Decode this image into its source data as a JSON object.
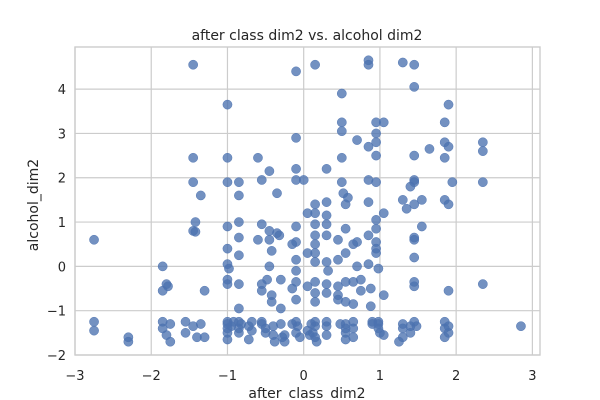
{
  "chart_data": {
    "type": "scatter",
    "title": "after class dim2 vs. alcohol dim2",
    "xlabel": "after_class_dim2",
    "ylabel": "alcohol_dim2",
    "xlim": [
      -3,
      3.1
    ],
    "ylim": [
      -2,
      4.95
    ],
    "xticks": [
      -3,
      -2,
      -1,
      0,
      1,
      2,
      3
    ],
    "yticks": [
      -2,
      -1,
      0,
      1,
      2,
      3,
      4
    ],
    "grid": true,
    "color": "#4c72b0",
    "points": [
      [
        -2.75,
        0.6
      ],
      [
        -2.75,
        -1.25
      ],
      [
        -2.75,
        -1.45
      ],
      [
        -2.3,
        -1.6
      ],
      [
        -2.3,
        -1.7
      ],
      [
        -1.85,
        0.0
      ],
      [
        -1.85,
        -0.55
      ],
      [
        -1.8,
        -0.4
      ],
      [
        -1.78,
        -0.45
      ],
      [
        -1.85,
        -1.25
      ],
      [
        -1.85,
        -1.4
      ],
      [
        -1.8,
        -1.55
      ],
      [
        -1.75,
        -1.7
      ],
      [
        -1.75,
        -1.3
      ],
      [
        -1.55,
        -1.25
      ],
      [
        -1.55,
        -1.5
      ],
      [
        -1.45,
        -1.35
      ],
      [
        -1.4,
        -1.6
      ],
      [
        -1.35,
        -1.3
      ],
      [
        -1.3,
        -1.6
      ],
      [
        -1.45,
        4.55
      ],
      [
        -1.45,
        2.45
      ],
      [
        -1.45,
        1.9
      ],
      [
        -1.42,
        1.0
      ],
      [
        -1.45,
        0.8
      ],
      [
        -1.42,
        0.78
      ],
      [
        -1.35,
        1.6
      ],
      [
        -1.3,
        -0.55
      ],
      [
        -1.0,
        3.65
      ],
      [
        -1.0,
        2.45
      ],
      [
        -1.0,
        1.9
      ],
      [
        -1.0,
        0.9
      ],
      [
        -1.0,
        0.4
      ],
      [
        -1.0,
        0.05
      ],
      [
        -0.98,
        -0.05
      ],
      [
        -1.0,
        -0.3
      ],
      [
        -1.0,
        -0.4
      ],
      [
        -1.0,
        -1.25
      ],
      [
        -1.0,
        -1.3
      ],
      [
        -1.0,
        -1.4
      ],
      [
        -1.0,
        -1.5
      ],
      [
        -1.0,
        -1.65
      ],
      [
        -0.95,
        -1.35
      ],
      [
        -0.92,
        -1.25
      ],
      [
        -0.85,
        1.9
      ],
      [
        -0.85,
        1.6
      ],
      [
        -0.85,
        1.0
      ],
      [
        -0.85,
        0.65
      ],
      [
        -0.85,
        0.25
      ],
      [
        -0.85,
        -0.4
      ],
      [
        -0.85,
        -0.95
      ],
      [
        -0.85,
        -1.25
      ],
      [
        -0.85,
        -1.4
      ],
      [
        -0.85,
        -1.5
      ],
      [
        -0.82,
        -1.3
      ],
      [
        -0.72,
        -1.35
      ],
      [
        -0.72,
        -1.65
      ],
      [
        -0.68,
        -1.25
      ],
      [
        -0.68,
        -1.45
      ],
      [
        -0.6,
        2.45
      ],
      [
        -0.55,
        1.95
      ],
      [
        -0.55,
        0.95
      ],
      [
        -0.6,
        0.6
      ],
      [
        -0.55,
        -0.4
      ],
      [
        -0.55,
        -0.55
      ],
      [
        -0.55,
        -1.25
      ],
      [
        -0.55,
        -1.3
      ],
      [
        -0.5,
        -1.4
      ],
      [
        -0.5,
        -1.5
      ],
      [
        -0.48,
        -0.3
      ],
      [
        -0.45,
        2.15
      ],
      [
        -0.45,
        0.8
      ],
      [
        -0.45,
        0.6
      ],
      [
        -0.45,
        0.0
      ],
      [
        -0.42,
        0.35
      ],
      [
        -0.42,
        -0.65
      ],
      [
        -0.42,
        -0.8
      ],
      [
        -0.4,
        -1.35
      ],
      [
        -0.4,
        -1.55
      ],
      [
        -0.38,
        -1.7
      ],
      [
        -0.35,
        1.65
      ],
      [
        -0.35,
        0.75
      ],
      [
        -0.32,
        0.7
      ],
      [
        -0.3,
        -0.3
      ],
      [
        -0.3,
        -0.95
      ],
      [
        -0.3,
        -1.3
      ],
      [
        -0.28,
        -1.6
      ],
      [
        -0.25,
        -1.55
      ],
      [
        -0.25,
        -1.7
      ],
      [
        -0.15,
        0.5
      ],
      [
        -0.15,
        -0.5
      ],
      [
        -0.15,
        -1.3
      ],
      [
        -0.1,
        -1.5
      ],
      [
        -0.1,
        -0.75
      ],
      [
        -0.1,
        2.9
      ],
      [
        -0.1,
        2.2
      ],
      [
        -0.1,
        1.95
      ],
      [
        -0.1,
        0.9
      ],
      [
        -0.1,
        0.55
      ],
      [
        -0.1,
        0.15
      ],
      [
        -0.1,
        -0.1
      ],
      [
        -0.1,
        -0.35
      ],
      [
        -0.1,
        -1.25
      ],
      [
        -0.08,
        -1.35
      ],
      [
        -0.05,
        -1.6
      ],
      [
        -0.1,
        4.4
      ],
      [
        0.0,
        1.95
      ],
      [
        0.05,
        1.2
      ],
      [
        0.05,
        0.3
      ],
      [
        0.05,
        -0.45
      ],
      [
        0.05,
        -1.45
      ],
      [
        0.08,
        -1.55
      ],
      [
        0.1,
        -1.3
      ],
      [
        0.12,
        -1.5
      ],
      [
        0.15,
        4.55
      ],
      [
        0.15,
        1.4
      ],
      [
        0.15,
        1.2
      ],
      [
        0.15,
        0.95
      ],
      [
        0.15,
        0.7
      ],
      [
        0.15,
        0.5
      ],
      [
        0.15,
        0.3
      ],
      [
        0.15,
        0.1
      ],
      [
        0.15,
        -0.35
      ],
      [
        0.15,
        -0.6
      ],
      [
        0.15,
        -0.8
      ],
      [
        0.15,
        -1.25
      ],
      [
        0.15,
        -1.35
      ],
      [
        0.15,
        -1.6
      ],
      [
        0.17,
        -1.7
      ],
      [
        0.3,
        2.2
      ],
      [
        0.3,
        1.45
      ],
      [
        0.3,
        1.15
      ],
      [
        0.3,
        0.95
      ],
      [
        0.3,
        0.7
      ],
      [
        0.3,
        0.1
      ],
      [
        0.3,
        -0.4
      ],
      [
        0.3,
        -0.6
      ],
      [
        0.3,
        -1.25
      ],
      [
        0.3,
        -1.35
      ],
      [
        0.3,
        -1.55
      ],
      [
        0.32,
        -0.1
      ],
      [
        0.45,
        0.6
      ],
      [
        0.45,
        0.15
      ],
      [
        0.45,
        -0.45
      ],
      [
        0.45,
        -0.65
      ],
      [
        0.45,
        -0.75
      ],
      [
        0.48,
        -1.3
      ],
      [
        0.5,
        3.9
      ],
      [
        0.5,
        3.25
      ],
      [
        0.5,
        3.05
      ],
      [
        0.5,
        2.45
      ],
      [
        0.5,
        1.9
      ],
      [
        0.52,
        1.65
      ],
      [
        0.55,
        1.4
      ],
      [
        0.55,
        0.85
      ],
      [
        0.55,
        0.3
      ],
      [
        0.55,
        -0.35
      ],
      [
        0.55,
        -0.8
      ],
      [
        0.55,
        -1.3
      ],
      [
        0.55,
        -1.4
      ],
      [
        0.55,
        -1.5
      ],
      [
        0.55,
        -1.65
      ],
      [
        0.58,
        1.55
      ],
      [
        0.65,
        0.5
      ],
      [
        0.65,
        -0.35
      ],
      [
        0.65,
        -0.85
      ],
      [
        0.65,
        -1.25
      ],
      [
        0.65,
        -1.4
      ],
      [
        0.65,
        -1.6
      ],
      [
        0.7,
        2.85
      ],
      [
        0.7,
        0.55
      ],
      [
        0.7,
        0.0
      ],
      [
        0.75,
        -0.3
      ],
      [
        0.75,
        -0.55
      ],
      [
        0.85,
        4.65
      ],
      [
        0.85,
        4.55
      ],
      [
        0.85,
        2.7
      ],
      [
        0.85,
        1.95
      ],
      [
        0.85,
        1.45
      ],
      [
        0.85,
        0.7
      ],
      [
        0.85,
        0.05
      ],
      [
        0.88,
        -0.5
      ],
      [
        0.88,
        -0.9
      ],
      [
        0.9,
        -1.25
      ],
      [
        0.9,
        -1.3
      ],
      [
        0.95,
        3.0
      ],
      [
        0.95,
        3.25
      ],
      [
        0.95,
        2.8
      ],
      [
        0.95,
        2.5
      ],
      [
        0.95,
        1.9
      ],
      [
        0.95,
        1.05
      ],
      [
        0.95,
        0.85
      ],
      [
        0.95,
        0.55
      ],
      [
        0.95,
        0.4
      ],
      [
        0.95,
        0.3
      ],
      [
        0.98,
        -0.05
      ],
      [
        0.98,
        -1.25
      ],
      [
        0.98,
        -1.3
      ],
      [
        0.98,
        -1.4
      ],
      [
        1.0,
        -1.5
      ],
      [
        1.05,
        3.25
      ],
      [
        1.05,
        1.2
      ],
      [
        1.05,
        -0.65
      ],
      [
        1.05,
        -1.55
      ],
      [
        1.3,
        4.6
      ],
      [
        1.3,
        1.5
      ],
      [
        1.3,
        -1.3
      ],
      [
        1.3,
        -1.4
      ],
      [
        1.3,
        -1.6
      ],
      [
        1.25,
        -1.7
      ],
      [
        1.35,
        1.3
      ],
      [
        1.4,
        -1.35
      ],
      [
        1.4,
        -1.5
      ],
      [
        1.45,
        4.55
      ],
      [
        1.45,
        4.05
      ],
      [
        1.45,
        2.5
      ],
      [
        1.45,
        1.95
      ],
      [
        1.45,
        1.9
      ],
      [
        1.4,
        1.8
      ],
      [
        1.45,
        1.4
      ],
      [
        1.45,
        0.65
      ],
      [
        1.45,
        0.6
      ],
      [
        1.45,
        0.2
      ],
      [
        1.45,
        -0.35
      ],
      [
        1.45,
        -0.45
      ],
      [
        1.45,
        -1.25
      ],
      [
        1.48,
        -1.35
      ],
      [
        1.55,
        1.5
      ],
      [
        1.55,
        0.9
      ],
      [
        1.65,
        2.65
      ],
      [
        1.85,
        3.25
      ],
      [
        1.85,
        2.8
      ],
      [
        1.85,
        2.45
      ],
      [
        1.85,
        1.5
      ],
      [
        1.9,
        3.65
      ],
      [
        1.9,
        2.7
      ],
      [
        1.9,
        1.4
      ],
      [
        1.9,
        -0.55
      ],
      [
        1.85,
        -1.25
      ],
      [
        1.85,
        -1.4
      ],
      [
        1.85,
        -1.6
      ],
      [
        1.9,
        -1.35
      ],
      [
        1.9,
        -1.5
      ],
      [
        1.95,
        1.9
      ],
      [
        2.35,
        2.8
      ],
      [
        2.35,
        2.6
      ],
      [
        2.35,
        1.9
      ],
      [
        2.35,
        -0.4
      ],
      [
        2.85,
        -1.35
      ]
    ]
  }
}
